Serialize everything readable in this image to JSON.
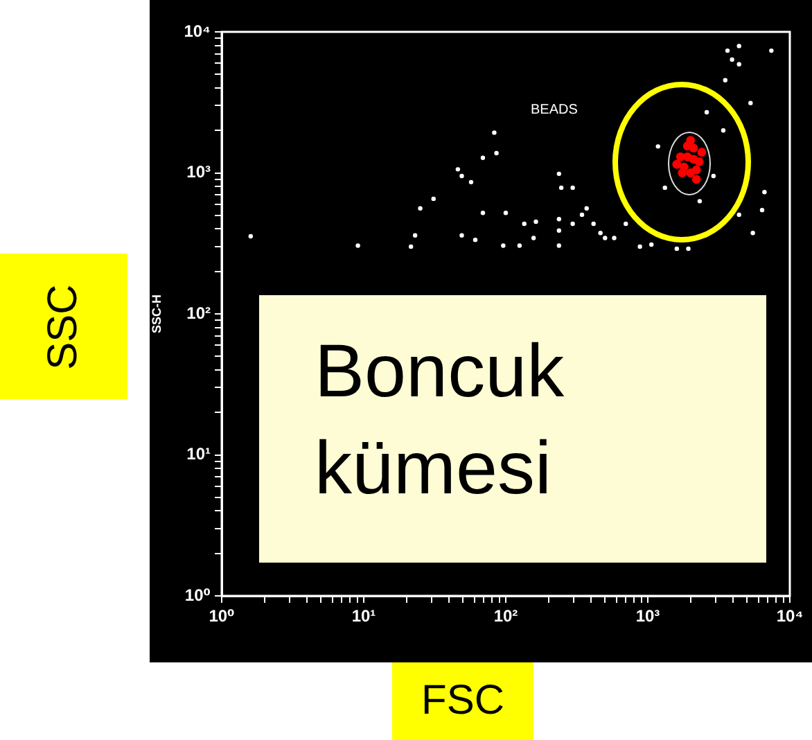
{
  "chart_data": {
    "type": "scatter",
    "xlabel": "FSC",
    "ylabel": "SSC-H",
    "log": "xy",
    "marker": "circle",
    "xlim": [
      1,
      10000
    ],
    "ylim": [
      1,
      10000
    ],
    "xticks": [
      {
        "value": 1,
        "label": "10⁰"
      },
      {
        "value": 2,
        "label": null
      },
      {
        "value": 3,
        "label": null
      },
      {
        "value": 4,
        "label": null
      },
      {
        "value": 5,
        "label": null
      },
      {
        "value": 6,
        "label": null
      },
      {
        "value": 7,
        "label": null
      },
      {
        "value": 8,
        "label": null
      },
      {
        "value": 9,
        "label": null
      },
      {
        "value": 10,
        "label": "10¹"
      },
      {
        "value": 20,
        "label": null
      },
      {
        "value": 30,
        "label": null
      },
      {
        "value": 40,
        "label": null
      },
      {
        "value": 50,
        "label": null
      },
      {
        "value": 60,
        "label": null
      },
      {
        "value": 70,
        "label": null
      },
      {
        "value": 80,
        "label": null
      },
      {
        "value": 90,
        "label": null
      },
      {
        "value": 100,
        "label": "10²"
      },
      {
        "value": 200,
        "label": null
      },
      {
        "value": 300,
        "label": null
      },
      {
        "value": 400,
        "label": null
      },
      {
        "value": 500,
        "label": null
      },
      {
        "value": 600,
        "label": null
      },
      {
        "value": 700,
        "label": null
      },
      {
        "value": 800,
        "label": null
      },
      {
        "value": 900,
        "label": null
      },
      {
        "value": 1000,
        "label": "10³"
      },
      {
        "value": 2000,
        "label": null
      },
      {
        "value": 3000,
        "label": null
      },
      {
        "value": 4000,
        "label": null
      },
      {
        "value": 5000,
        "label": null
      },
      {
        "value": 6000,
        "label": null
      },
      {
        "value": 7000,
        "label": null
      },
      {
        "value": 8000,
        "label": null
      },
      {
        "value": 9000,
        "label": null
      },
      {
        "value": 10000,
        "label": "10⁴"
      }
    ],
    "yticks": [
      {
        "value": 1,
        "label": "10⁰"
      },
      {
        "value": 2,
        "label": null
      },
      {
        "value": 3,
        "label": null
      },
      {
        "value": 4,
        "label": null
      },
      {
        "value": 5,
        "label": null
      },
      {
        "value": 6,
        "label": null
      },
      {
        "value": 7,
        "label": null
      },
      {
        "value": 8,
        "label": null
      },
      {
        "value": 9,
        "label": null
      },
      {
        "value": 10,
        "label": "10¹"
      },
      {
        "value": 20,
        "label": null
      },
      {
        "value": 30,
        "label": null
      },
      {
        "value": 40,
        "label": null
      },
      {
        "value": 50,
        "label": null
      },
      {
        "value": 60,
        "label": null
      },
      {
        "value": 70,
        "label": null
      },
      {
        "value": 80,
        "label": null
      },
      {
        "value": 90,
        "label": null
      },
      {
        "value": 100,
        "label": "10²"
      },
      {
        "value": 200,
        "label": null
      },
      {
        "value": 300,
        "label": null
      },
      {
        "value": 400,
        "label": null
      },
      {
        "value": 500,
        "label": null
      },
      {
        "value": 600,
        "label": null
      },
      {
        "value": 700,
        "label": null
      },
      {
        "value": 800,
        "label": null
      },
      {
        "value": 900,
        "label": null
      },
      {
        "value": 1000,
        "label": "10³"
      },
      {
        "value": 2000,
        "label": null
      },
      {
        "value": 3000,
        "label": null
      },
      {
        "value": 4000,
        "label": null
      },
      {
        "value": 5000,
        "label": null
      },
      {
        "value": 6000,
        "label": null
      },
      {
        "value": 7000,
        "label": null
      },
      {
        "value": 8000,
        "label": null
      },
      {
        "value": 9000,
        "label": null
      },
      {
        "value": 10000,
        "label": "10⁴"
      }
    ],
    "series": [
      {
        "color": "#ffffff",
        "x": [
          1.6,
          9.1,
          21.5,
          23,
          25,
          31,
          46,
          49,
          57,
          69,
          83,
          86,
          69,
          100,
          49,
          61,
          96,
          125,
          135,
          163,
          157,
          237,
          246,
          296,
          237,
          237,
          237,
          296,
          344,
          371,
          415,
          464,
          500,
          580,
          700,
          880,
          1060,
          1600,
          1930,
          2320,
          2900,
          2600,
          3400,
          1180,
          1320,
          4390,
          5490,
          6380,
          6630,
          5290,
          3510,
          3920,
          4390,
          3640,
          7410,
          4390
        ],
        "values": [
          355,
          305,
          300,
          360,
          560,
          655,
          1060,
          950,
          860,
          1280,
          1930,
          1380,
          520,
          520,
          360,
          335,
          305,
          305,
          435,
          450,
          345,
          985,
          785,
          785,
          470,
          390,
          305,
          435,
          505,
          560,
          435,
          375,
          345,
          345,
          435,
          300,
          310,
          290,
          290,
          630,
          950,
          2690,
          2000,
          1540,
          785,
          505,
          375,
          545,
          730,
          3130,
          4540,
          6360,
          5890,
          7360,
          7360,
          7940
        ]
      },
      {
        "color": "#ff0000",
        "x": [
          1700,
          1900,
          2100,
          2300,
          1800,
          2000,
          2200,
          1600,
          1900,
          2100,
          2000,
          2400,
          1750,
          2200
        ],
        "values": [
          1300,
          1300,
          1250,
          1200,
          1100,
          1000,
          1050,
          1150,
          1550,
          1500,
          1700,
          1400,
          1000,
          900
        ]
      }
    ],
    "annotations": [
      "SSC",
      "BEADS",
      "Boncuk kümesi"
    ]
  }
}
